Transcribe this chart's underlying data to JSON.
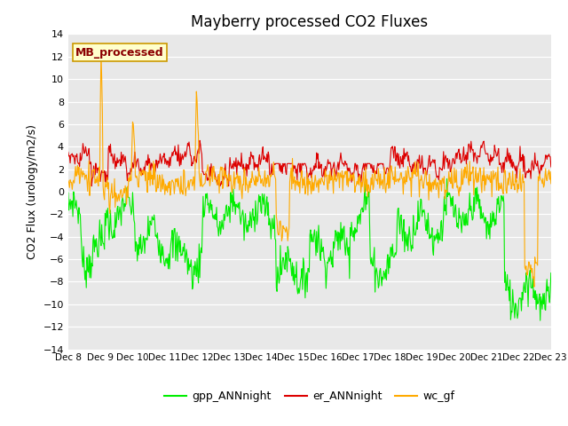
{
  "title": "Mayberry processed CO2 Fluxes",
  "ylabel": "CO2 Flux (urology/m2/s)",
  "ylim": [
    -14,
    14
  ],
  "yticks": [
    -14,
    -12,
    -10,
    -8,
    -6,
    -4,
    -2,
    0,
    2,
    4,
    6,
    8,
    10,
    12,
    14
  ],
  "bg_color": "#e8e8e8",
  "fig_bg_color": "#ffffff",
  "title_fontsize": 12,
  "axis_label_fontsize": 9,
  "tick_fontsize": 8,
  "legend_label": "MB_processed",
  "legend_label_color": "#8b0000",
  "legend_bg_color": "#ffffcc",
  "legend_border_color": "#cc9900",
  "series": [
    {
      "label": "gpp_ANNnight",
      "color": "#00ee00",
      "linewidth": 0.8
    },
    {
      "label": "er_ANNnight",
      "color": "#dd0000",
      "linewidth": 0.8
    },
    {
      "label": "wc_gf",
      "color": "#ffaa00",
      "linewidth": 0.8
    }
  ],
  "n_points": 720,
  "xtick_labels": [
    "Dec 8",
    "Dec 9",
    "Dec 10",
    "Dec 11",
    "Dec 12",
    "Dec 13",
    "Dec 14",
    "Dec 15",
    "Dec 16",
    "Dec 17",
    "Dec 18",
    "Dec 19",
    "Dec 20",
    "Dec 21",
    "Dec 22",
    "Dec 23"
  ]
}
